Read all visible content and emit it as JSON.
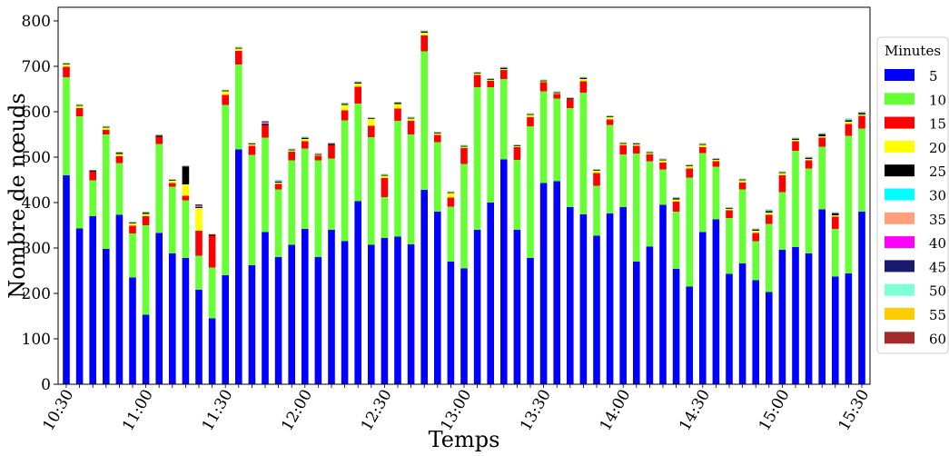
{
  "chart_data": {
    "type": "bar",
    "stacked": true,
    "xlabel": "Temps",
    "ylabel": "Nombre de nœuds",
    "ylim": [
      0,
      830
    ],
    "yticks": [
      0,
      100,
      200,
      300,
      400,
      500,
      600,
      700,
      800
    ],
    "x_tick_labels": [
      {
        "index": 0,
        "label": "10:30"
      },
      {
        "index": 6,
        "label": "11:00"
      },
      {
        "index": 12,
        "label": "11:30"
      },
      {
        "index": 18,
        "label": "12:00"
      },
      {
        "index": 24,
        "label": "12:30"
      },
      {
        "index": 30,
        "label": "13:00"
      },
      {
        "index": 36,
        "label": "13:30"
      },
      {
        "index": 42,
        "label": "14:00"
      },
      {
        "index": 48,
        "label": "14:30"
      },
      {
        "index": 54,
        "label": "15:00"
      },
      {
        "index": 60,
        "label": "15:30"
      }
    ],
    "legend": {
      "title": "Minutes",
      "position": "right"
    },
    "series": [
      {
        "name": "5",
        "color": "#0000ff",
        "values": [
          460,
          343,
          370,
          298,
          373,
          235,
          153,
          333,
          288,
          278,
          208,
          145,
          240,
          517,
          262,
          335,
          280,
          307,
          342,
          280,
          340,
          315,
          403,
          307,
          322,
          325,
          308,
          428,
          380,
          270,
          255,
          340,
          400,
          495,
          340,
          278,
          443,
          447,
          390,
          374,
          327,
          376,
          390,
          270,
          303,
          395,
          254,
          215,
          335,
          363,
          243,
          266,
          229,
          203,
          296,
          302,
          288,
          385,
          237,
          244,
          380
        ]
      },
      {
        "name": "10",
        "color": "#66ff33",
        "values": [
          216,
          247,
          79,
          252,
          114,
          97,
          197,
          196,
          147,
          127,
          75,
          112,
          375,
          187,
          243,
          208,
          149,
          186,
          177,
          213,
          157,
          266,
          215,
          237,
          90,
          255,
          242,
          305,
          153,
          121,
          230,
          314,
          254,
          177,
          154,
          290,
          202,
          182,
          218,
          268,
          110,
          195,
          116,
          238,
          188,
          78,
          126,
          240,
          174,
          116,
          123,
          163,
          86,
          150,
          127,
          212,
          187,
          138,
          105,
          303,
          183
        ]
      },
      {
        "name": "15",
        "color": "#ff0000",
        "values": [
          23,
          18,
          19,
          10,
          15,
          17,
          20,
          16,
          8,
          10,
          55,
          70,
          22,
          30,
          20,
          28,
          12,
          19,
          16,
          10,
          30,
          22,
          37,
          25,
          42,
          27,
          30,
          35,
          16,
          20,
          35,
          27,
          14,
          20,
          28,
          20,
          20,
          10,
          20,
          25,
          28,
          12,
          20,
          17,
          15,
          15,
          22,
          20,
          13,
          12,
          17,
          15,
          18,
          20,
          37,
          21,
          18,
          20,
          27,
          26,
          28
        ]
      },
      {
        "name": "20",
        "color": "#ffff00",
        "values": [
          5,
          5,
          0,
          5,
          5,
          5,
          5,
          0,
          5,
          25,
          50,
          0,
          8,
          5,
          3,
          0,
          3,
          3,
          5,
          2,
          0,
          12,
          7,
          15,
          5,
          10,
          5,
          6,
          3,
          10,
          3,
          3,
          2,
          2,
          2,
          5,
          2,
          2,
          0,
          5,
          5,
          5,
          3,
          3,
          3,
          5,
          5,
          5,
          5,
          3,
          3,
          5,
          5,
          5,
          5,
          3,
          3,
          3,
          3,
          5,
          3
        ]
      },
      {
        "name": "25",
        "color": "#000000",
        "values": [
          2,
          2,
          3,
          2,
          3,
          2,
          3,
          3,
          2,
          40,
          3,
          3,
          2,
          2,
          2,
          3,
          2,
          2,
          3,
          2,
          3,
          2,
          3,
          2,
          2,
          3,
          2,
          3,
          2,
          2,
          2,
          2,
          2,
          3,
          2,
          2,
          2,
          2,
          2,
          3,
          2,
          2,
          2,
          2,
          2,
          2,
          3,
          2,
          2,
          2,
          2,
          2,
          3,
          3,
          2,
          3,
          3,
          5,
          5,
          3,
          3
        ]
      },
      {
        "name": "30",
        "color": "#00ffff",
        "values": [
          1,
          1,
          0,
          1,
          1,
          1,
          1,
          1,
          1,
          1,
          1,
          0,
          1,
          1,
          1,
          1,
          3,
          1,
          1,
          1,
          1,
          2,
          1,
          1,
          1,
          1,
          1,
          1,
          1,
          1,
          1,
          1,
          1,
          1,
          1,
          1,
          1,
          1,
          1,
          1,
          1,
          1,
          1,
          1,
          1,
          1,
          1,
          1,
          1,
          1,
          1,
          1,
          1,
          3,
          1,
          1,
          1,
          1,
          1,
          3,
          2
        ]
      },
      {
        "name": "35",
        "color": "#ffa07a",
        "values": [
          1,
          1,
          0,
          1,
          1,
          1,
          1,
          1,
          1,
          1,
          1,
          1,
          1,
          1,
          1,
          1,
          1,
          1,
          1,
          1,
          1,
          1,
          1,
          1,
          1,
          1,
          1,
          1,
          1,
          1,
          1,
          1,
          1,
          1,
          1,
          1,
          1,
          1,
          1,
          1,
          1,
          1,
          1,
          1,
          1,
          1,
          1,
          1,
          1,
          1,
          1,
          1,
          1,
          1,
          1,
          1,
          1,
          1,
          1,
          1,
          1
        ]
      },
      {
        "name": "40",
        "color": "#ff00ff",
        "values": [
          0,
          0,
          0,
          0,
          0,
          0,
          0,
          0,
          0,
          0,
          1,
          0,
          0,
          0,
          0,
          2,
          0,
          0,
          0,
          0,
          0,
          0,
          0,
          0,
          0,
          0,
          0,
          0,
          0,
          0,
          0,
          0,
          0,
          0,
          0,
          0,
          0,
          0,
          0,
          0,
          0,
          0,
          0,
          0,
          0,
          0,
          0,
          0,
          0,
          0,
          0,
          0,
          0,
          0,
          0,
          0,
          0,
          0,
          0,
          0,
          0
        ]
      },
      {
        "name": "45",
        "color": "#191970",
        "values": [
          0,
          0,
          0,
          0,
          0,
          0,
          0,
          0,
          0,
          0,
          1,
          0,
          0,
          0,
          0,
          1,
          0,
          0,
          0,
          0,
          0,
          0,
          0,
          0,
          0,
          0,
          0,
          0,
          0,
          0,
          0,
          0,
          0,
          0,
          0,
          0,
          0,
          0,
          0,
          0,
          0,
          0,
          0,
          0,
          0,
          0,
          0,
          0,
          0,
          0,
          0,
          0,
          0,
          0,
          0,
          0,
          0,
          0,
          0,
          0,
          0
        ]
      },
      {
        "name": "50",
        "color": "#7fffd4",
        "values": [
          0,
          0,
          0,
          0,
          0,
          0,
          0,
          0,
          0,
          0,
          0,
          0,
          0,
          0,
          0,
          0,
          0,
          0,
          0,
          0,
          0,
          0,
          0,
          0,
          0,
          0,
          0,
          0,
          0,
          0,
          0,
          0,
          0,
          0,
          0,
          0,
          0,
          0,
          0,
          0,
          0,
          0,
          0,
          0,
          0,
          0,
          0,
          0,
          0,
          0,
          0,
          0,
          0,
          0,
          0,
          0,
          0,
          0,
          0,
          0,
          0
        ]
      },
      {
        "name": "55",
        "color": "#ffcc00",
        "values": [
          0,
          0,
          0,
          0,
          0,
          0,
          0,
          0,
          0,
          0,
          0,
          0,
          0,
          0,
          0,
          0,
          0,
          0,
          0,
          0,
          0,
          0,
          0,
          0,
          0,
          0,
          0,
          0,
          0,
          0,
          0,
          0,
          0,
          0,
          0,
          0,
          0,
          0,
          0,
          0,
          0,
          0,
          0,
          0,
          0,
          0,
          0,
          0,
          0,
          0,
          0,
          0,
          0,
          0,
          0,
          0,
          0,
          0,
          0,
          0,
          0
        ]
      },
      {
        "name": "60",
        "color": "#a52a2a",
        "values": [
          0,
          0,
          0,
          0,
          0,
          0,
          0,
          0,
          0,
          0,
          1,
          0,
          0,
          0,
          0,
          0,
          0,
          0,
          0,
          0,
          0,
          0,
          0,
          0,
          0,
          0,
          0,
          0,
          0,
          0,
          0,
          0,
          0,
          0,
          0,
          0,
          0,
          0,
          0,
          0,
          0,
          0,
          0,
          0,
          0,
          0,
          0,
          0,
          0,
          0,
          0,
          0,
          0,
          0,
          0,
          0,
          0,
          0,
          0,
          0,
          0
        ]
      }
    ]
  }
}
